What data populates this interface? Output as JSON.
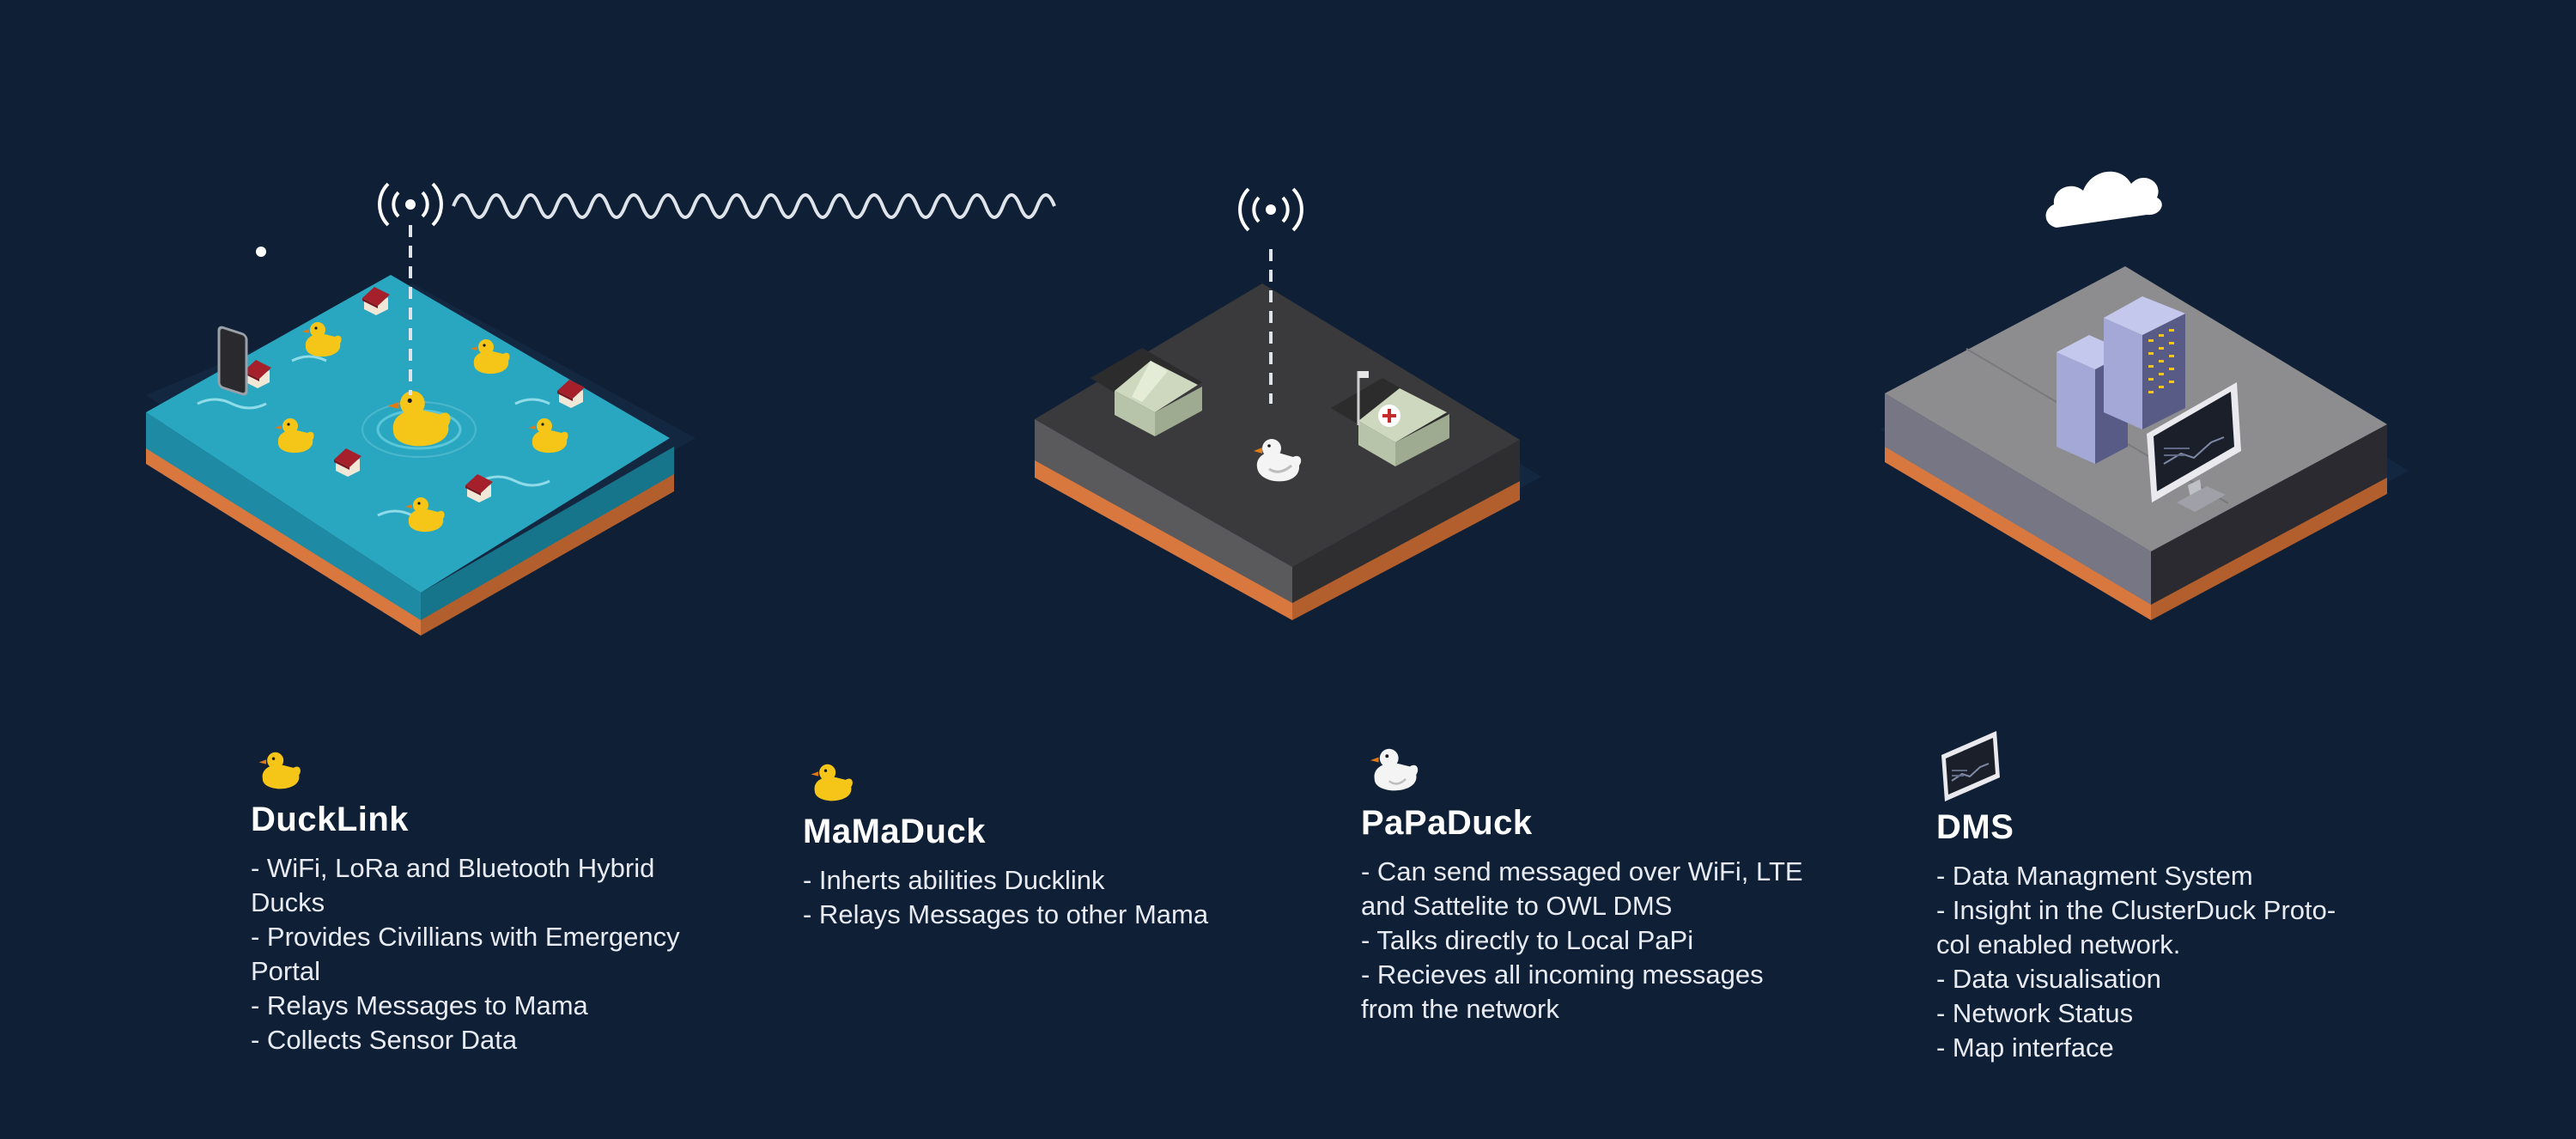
{
  "colors": {
    "background": "#0f1f36",
    "water": "#2aa7c0",
    "ground": "#3a3a3c",
    "platform": "#8d8d90",
    "soil": "#d8783e",
    "duck_yellow": "#f5c518",
    "duck_white": "#f4f4f4",
    "beak": "#e07a17",
    "roof_red": "#a5202b",
    "server": "#8a8fc4"
  },
  "nodes": [
    {
      "title": "DuckLink",
      "icon": "yellow-duck-icon",
      "items": [
        "- WiFi, LoRa and Bluetooth Hybrid",
        "Ducks",
        "- Provides Civillians with Emergency",
        "Portal",
        "- Relays Messages to Mama",
        "- Collects Sensor Data"
      ]
    },
    {
      "title": "MaMaDuck",
      "icon": "yellow-duck-icon",
      "items": [
        "- Inherts abilities Ducklink",
        "- Relays Messages to other Mama"
      ]
    },
    {
      "title": "PaPaDuck",
      "icon": "white-duck-icon",
      "items": [
        "- Can send messaged over WiFi, LTE",
        "and Sattelite to OWL DMS",
        "- Talks directly to Local PaPi",
        "- Recieves all incoming messages",
        "from the network"
      ]
    },
    {
      "title": "DMS",
      "icon": "monitor-icon",
      "items": [
        "- Data Managment System",
        "- Insight in the ClusterDuck Proto-",
        "col enabled network.",
        "- Data visualisation",
        "- Network Status",
        "- Map interface"
      ]
    }
  ]
}
